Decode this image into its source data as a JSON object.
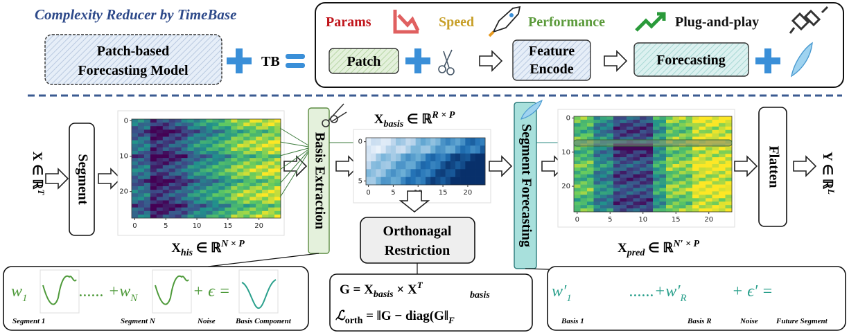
{
  "header": {
    "title": "Complexity Reducer by TimeBase"
  },
  "model": {
    "lines": [
      "Patch-based",
      "Forecasting Model"
    ],
    "tb": "TB"
  },
  "benefits": [
    "Params",
    "Speed",
    "Performance",
    "Plug-and-play"
  ],
  "pipeline": {
    "patch": "Patch",
    "feature_encode": [
      "Feature",
      "Encode"
    ],
    "forecasting": "Forecasting"
  },
  "main": {
    "input": {
      "symbol": "X",
      "rel": " ∈ ℝ",
      "sup": "T"
    },
    "segment": "Segment",
    "his": {
      "symbol": "X",
      "sub": "his",
      "rel": " ∈ ℝ",
      "sup": "N × P",
      "yticks": [
        0,
        10,
        20
      ],
      "xticks": [
        0,
        5,
        10,
        15,
        20
      ]
    },
    "basis_extraction": "Basis Extraction",
    "basis": {
      "symbol": "X",
      "sub": "basis",
      "rel": " ∈ ℝ",
      "sup": "R × P",
      "yticks": [
        0,
        5
      ],
      "xticks": [
        0,
        5,
        10,
        15,
        20
      ]
    },
    "orth": [
      "Orthonagal",
      "Restriction"
    ],
    "segment_forecasting": "Segment Forecasting",
    "pred": {
      "symbol": "X",
      "sub": "pred",
      "rel": " ∈ ℝ",
      "sup": "N′ × P",
      "yticks": [
        0,
        10,
        20
      ],
      "xticks": [
        0,
        5,
        10,
        15,
        20
      ]
    },
    "flatten": "Flatten",
    "output": {
      "symbol": "Y",
      "rel": " ∈ ℝ",
      "sup": "L"
    }
  },
  "formulas": {
    "gram": {
      "lhs": "G = X",
      "sub1": "basis",
      "mid": " × X",
      "sup2": "T",
      "sub2": "basis"
    },
    "orth": {
      "lhs": "ℒ",
      "sub1": "orth",
      "mid": " = ‖G − diag(G‖",
      "sub2": "F"
    }
  },
  "left_sum": {
    "w1": "w",
    "i1": "1",
    "dots": "...... +w",
    "iN": "N",
    "tail": "+ ϵ =",
    "labels": [
      "Segment 1",
      "Segment N",
      "Noise",
      "Basis Component"
    ]
  },
  "right_sum": {
    "w1": "w′",
    "i1": "1",
    "dots": "......+w′",
    "iN": "R",
    "tail": "+ ϵ′ =",
    "labels": [
      "Basis 1",
      "Basis R",
      "Noise",
      "Future Segment"
    ]
  }
}
